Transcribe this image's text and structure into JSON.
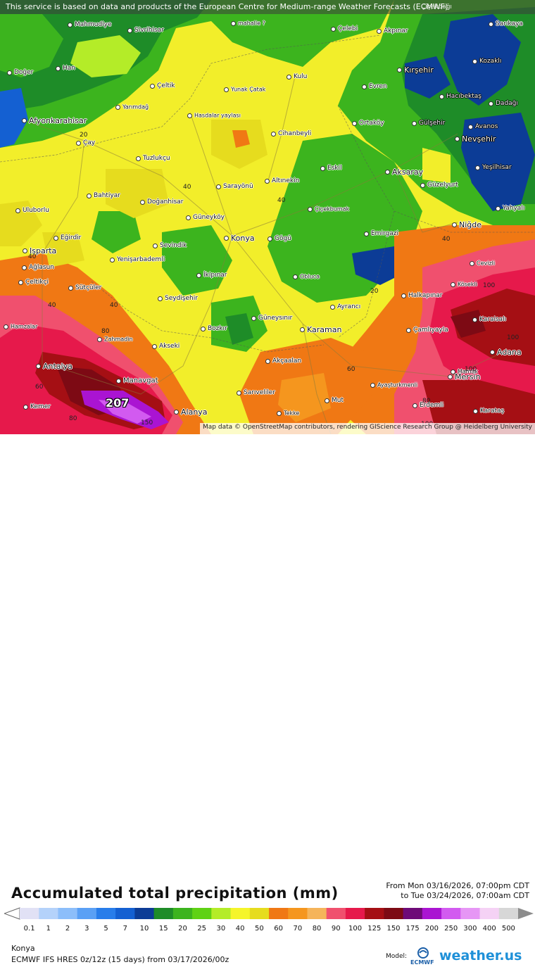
{
  "header": {
    "notice": "This service is based on data and products of the European Centre for Medium-range Weather Forecasts (ECMWF)",
    "corner_city": "Çiçekdağı"
  },
  "map": {
    "attribution": "Map data © OpenStreetMap contributors, rendering GIScience Research Group @ Heidelberg University",
    "peak_value": "207",
    "cities_small": [
      "Mahmudiye",
      "Sivrihisar",
      "mahalle ?",
      "Çelebi",
      "Akpınar",
      "Sarıkaya",
      "Doğer",
      "Han",
      "Çeltik",
      "Yunak Çatak",
      "Kulu",
      "Evren",
      "Kozaklı",
      "Yarımdağ",
      "Hasdalar yaylası",
      "Hacıbektaş",
      "Cihanbeyli",
      "Ortaköy",
      "Gülşehir",
      "Avanos",
      "Dadağı",
      "Çay",
      "Tuzlukçu",
      "Eskil",
      "Yeşilhisar",
      "Bahtiyar",
      "Altınekin",
      "Güzelyurt",
      "Sarayönü",
      "Doğanhisar",
      "Uluborlu",
      "Çiçekbumak",
      "Yahyalı",
      "Güneyköy",
      "Eğirdir",
      "Sevindik",
      "Gögü",
      "Emirgazi",
      "Yenişarbademli",
      "Cevizli",
      "Ağlasun",
      "İkipınar",
      "Obluca",
      "Çeltikçi",
      "Sütçüler",
      "Seydişehir",
      "Kösekli",
      "Halkapınar",
      "Güneysınır",
      "Ayrancı",
      "Karaisalı",
      "Hamzalar",
      "Bozkır",
      "Çamlıyayla",
      "Zahmadin",
      "Akseki",
      "Akçaalan",
      "Mamak",
      "Ayaşturkmenli",
      "Sarıveliler",
      "Mut",
      "Erdemli",
      "Kemer",
      "Tekke",
      "Karataş"
    ],
    "cities_big": [
      "Afyonkarahisar",
      "Kırşehir",
      "Nevşehir",
      "Aksaray",
      "Niğde",
      "Isparta",
      "Konya",
      "Karaman",
      "Adana",
      "Antalya",
      "Manavgat",
      "Mersin",
      "Alanya"
    ],
    "contour_labels": [
      "20",
      "40",
      "40",
      "40",
      "40",
      "20",
      "40",
      "40",
      "60",
      "80",
      "80",
      "80",
      "100",
      "100",
      "100",
      "100",
      "60",
      "150"
    ]
  },
  "legend": {
    "title": "Accumulated total precipitation (mm)",
    "period_from": "From Mon 03/16/2026, 07:00pm CDT",
    "period_to": "to Tue 03/24/2026, 07:00am CDT",
    "ticks": [
      "0.1",
      "1",
      "2",
      "3",
      "5",
      "7",
      "10",
      "15",
      "20",
      "25",
      "30",
      "40",
      "50",
      "60",
      "70",
      "80",
      "90",
      "100",
      "125",
      "150",
      "175",
      "200",
      "250",
      "300",
      "400",
      "500"
    ],
    "colors": [
      "#e1e1f5",
      "#b4d2fa",
      "#8cbefa",
      "#5aa0f5",
      "#287dea",
      "#1460d2",
      "#0c3c96",
      "#1e8c28",
      "#3cb41e",
      "#5fd214",
      "#b4ec28",
      "#f5f52a",
      "#e6dc1e",
      "#f07814",
      "#f5961e",
      "#f5b45a",
      "#f0506e",
      "#e6194b",
      "#a50f14",
      "#7d0a14",
      "#6e0a78",
      "#aa14d2",
      "#d25af0",
      "#e696f5",
      "#f5d2f5",
      "#d7d7d7"
    ],
    "location": "Konya",
    "model": "ECMWF IFS HRES 0z/12z (15 days) from  03/17/2026/00z",
    "model_label": "Model:",
    "ecmwf_logo": "ECMWF",
    "brand": "weather.us"
  }
}
